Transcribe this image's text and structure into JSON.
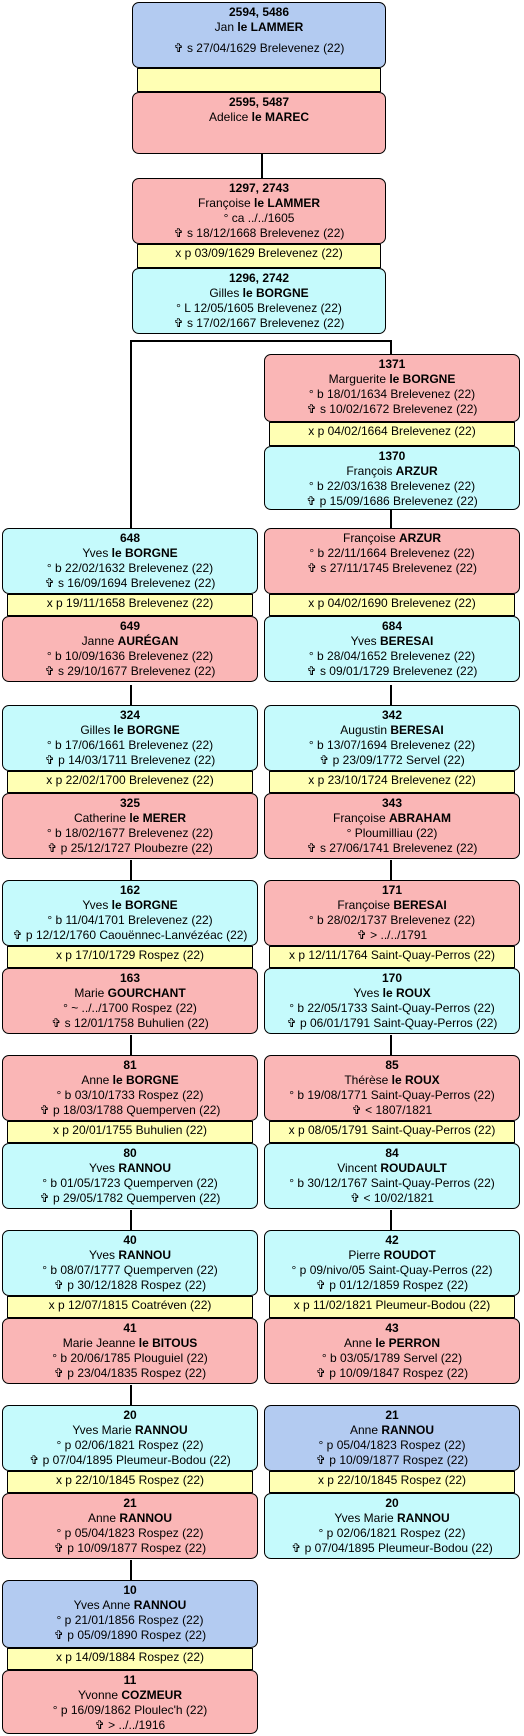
{
  "cards": {
    "c1": {
      "num": "2594, 5486",
      "first": "Jan ",
      "last": "le LAMMER",
      "lines": [
        "✞ s 27/04/1629 Brelevenez (22)"
      ]
    },
    "c2": {
      "num": "2595, 5487",
      "first": "Adelice ",
      "last": "le MAREC",
      "lines": []
    },
    "c3": {
      "num": "1297, 2743",
      "first": "Françoise ",
      "last": "le LAMMER",
      "lines": [
        "° ca ../../1605",
        "✞ s 18/12/1668 Brelevenez (22)"
      ]
    },
    "c4": {
      "num": "1296, 2742",
      "first": "Gilles ",
      "last": "le BORGNE",
      "lines": [
        "° L 12/05/1605 Brelevenez (22)",
        "✞ s 17/02/1667 Brelevenez (22)"
      ]
    },
    "c5": {
      "num": "1371",
      "first": "Marguerite ",
      "last": "le BORGNE",
      "lines": [
        "° b 18/01/1634 Brelevenez (22)",
        "✞ s 10/02/1672 Brelevenez (22)"
      ]
    },
    "c6": {
      "num": "1370",
      "first": "François ",
      "last": "ARZUR",
      "lines": [
        "° b 22/03/1638 Brelevenez (22)",
        "✞ p 15/09/1686 Brelevenez (22)"
      ]
    },
    "c7": {
      "num": "648",
      "first": "Yves ",
      "last": "le BORGNE",
      "lines": [
        "° b 22/02/1632 Brelevenez (22)",
        "✞ s 16/09/1694 Brelevenez (22)"
      ]
    },
    "c8": {
      "num": "649",
      "first": "Janne ",
      "last": "AURÉGAN",
      "lines": [
        "° b 10/09/1636 Brelevenez (22)",
        "✞ s 29/10/1677 Brelevenez (22)"
      ]
    },
    "c9": {
      "num": "",
      "first": "Françoise ",
      "last": "ARZUR",
      "lines": [
        "° b 22/11/1664 Brelevenez (22)",
        "✞ s 27/11/1745 Brelevenez (22)"
      ]
    },
    "c10": {
      "num": "684",
      "first": "Yves ",
      "last": "BERESAI",
      "lines": [
        "° b 28/04/1652 Brelevenez (22)",
        "✞ s 09/01/1729 Brelevenez (22)"
      ]
    },
    "c11": {
      "num": "324",
      "first": "Gilles ",
      "last": "le BORGNE",
      "lines": [
        "° b 17/06/1661 Brelevenez (22)",
        "✞ p 14/03/1711 Brelevenez (22)"
      ]
    },
    "c12": {
      "num": "325",
      "first": "Catherine ",
      "last": "le MERER",
      "lines": [
        "° b 18/02/1677 Brelevenez (22)",
        "✞ p 25/12/1727 Ploubezre (22)"
      ]
    },
    "c13": {
      "num": "342",
      "first": "Augustin ",
      "last": "BERESAI",
      "lines": [
        "° b 13/07/1694 Brelevenez (22)",
        "✞ p 23/09/1772 Servel (22)"
      ]
    },
    "c14": {
      "num": "343",
      "first": "Françoise ",
      "last": "ABRAHAM",
      "lines": [
        "° Ploumilliau (22)",
        "✞ s 27/06/1741 Brelevenez (22)"
      ]
    },
    "c15": {
      "num": "162",
      "first": "Yves ",
      "last": "le BORGNE",
      "lines": [
        "° b 11/04/1701 Brelevenez (22)",
        "✞ p 12/12/1760 Caouënnec-Lanvézéac (22)"
      ]
    },
    "c16": {
      "num": "163",
      "first": "Marie ",
      "last": "GOURCHANT",
      "lines": [
        "° ~ ../../1700 Rospez (22)",
        "✞ s 12/01/1758 Buhulien (22)"
      ]
    },
    "c17": {
      "num": "171",
      "first": "Françoise ",
      "last": "BERESAI",
      "lines": [
        "° b 28/02/1737 Brelevenez (22)",
        "✞ > ../../1791"
      ]
    },
    "c18": {
      "num": "170",
      "first": "Yves ",
      "last": "le ROUX",
      "lines": [
        "° b 22/05/1733 Saint-Quay-Perros (22)",
        "✞ p 06/01/1791 Saint-Quay-Perros (22)"
      ]
    },
    "c19": {
      "num": "81",
      "first": "Anne ",
      "last": "le BORGNE",
      "lines": [
        "° b 03/10/1733 Rospez (22)",
        "✞ p 18/03/1788 Quemperven (22)"
      ]
    },
    "c20": {
      "num": "80",
      "first": "Yves ",
      "last": "RANNOU",
      "lines": [
        "° b 01/05/1723 Quemperven (22)",
        "✞ p 29/05/1782 Quemperven (22)"
      ]
    },
    "c21": {
      "num": "85",
      "first": "Thérèse ",
      "last": "le ROUX",
      "lines": [
        "° b 19/08/1771 Saint-Quay-Perros (22)",
        "✞ <  1807/1821"
      ]
    },
    "c22": {
      "num": "84",
      "first": "Vincent ",
      "last": "ROUDAULT",
      "lines": [
        "° b 30/12/1767 Saint-Quay-Perros (22)",
        "✞ < 10/02/1821"
      ]
    },
    "c23": {
      "num": "40",
      "first": "Yves ",
      "last": "RANNOU",
      "lines": [
        "° b 08/07/1777 Quemperven (22)",
        "✞ p 30/12/1828 Rospez (22)"
      ]
    },
    "c24": {
      "num": "41",
      "first": "Marie Jeanne ",
      "last": "le BITOUS",
      "lines": [
        "° b 20/06/1785 Plouguiel (22)",
        "✞ p 23/04/1835 Rospez (22)"
      ]
    },
    "c25": {
      "num": "42",
      "first": "Pierre ",
      "last": "ROUDOT",
      "lines": [
        "° p 09/nivo/05 Saint-Quay-Perros (22)",
        "✞ p 01/12/1859 Rospez (22)"
      ]
    },
    "c26": {
      "num": "43",
      "first": "Anne ",
      "last": "le PERRON",
      "lines": [
        "° b 03/05/1789 Servel (22)",
        "✞ p 10/09/1847 Rospez (22)"
      ]
    },
    "c27": {
      "num": "20",
      "first": "Yves Marie ",
      "last": "RANNOU",
      "lines": [
        "° p 02/06/1821 Rospez (22)",
        "✞ p 07/04/1895 Pleumeur-Bodou (22)"
      ]
    },
    "c28": {
      "num": "21",
      "first": "Anne ",
      "last": "RANNOU",
      "lines": [
        "° p 05/04/1823 Rospez (22)",
        "✞ p 10/09/1877 Rospez (22)"
      ]
    },
    "c29": {
      "num": "21",
      "first": "Anne ",
      "last": "RANNOU",
      "lines": [
        "° p 05/04/1823 Rospez (22)",
        "✞ p 10/09/1877 Rospez (22)"
      ]
    },
    "c30": {
      "num": "20",
      "first": "Yves Marie ",
      "last": "RANNOU",
      "lines": [
        "° p 02/06/1821 Rospez (22)",
        "✞ p 07/04/1895 Pleumeur-Bodou (22)"
      ]
    },
    "c31": {
      "num": "10",
      "first": "Yves Anne ",
      "last": "RANNOU",
      "lines": [
        "° p 21/01/1856 Rospez (22)",
        "✞ p 05/09/1890 Rospez (22)"
      ]
    },
    "c32": {
      "num": "11",
      "first": "Yvonne ",
      "last": "COZMEUR",
      "lines": [
        "° p 16/09/1862 Ploulec'h (22)",
        "✞ > ../../1916"
      ]
    }
  },
  "marriages": {
    "m2": "x p 03/09/1629 Brelevenez (22)",
    "m3": "x p 04/02/1664 Brelevenez (22)",
    "m4": "x p 19/11/1658 Brelevenez (22)",
    "m5": "x p 04/02/1690 Brelevenez (22)",
    "m6": "x p 22/02/1700 Brelevenez (22)",
    "m7": "x p 23/10/1724 Brelevenez (22)",
    "m8": "x p 17/10/1729 Rospez (22)",
    "m9": "x p 12/11/1764 Saint-Quay-Perros (22)",
    "m10": "x p 20/01/1755 Buhulien (22)",
    "m11": "x p 08/05/1791 Saint-Quay-Perros (22)",
    "m12": "x p 12/07/1815 Coatréven (22)",
    "m13": "x p 11/02/1821 Pleumeur-Bodou (22)",
    "m14": "x p 22/10/1845 Rospez (22)",
    "m15": "x p 22/10/1845 Rospez (22)",
    "m16": "x p 14/09/1884 Rospez (22)"
  },
  "colors": {
    "male": "#c5fafc",
    "female": "#fab6b6",
    "highlight": "#b3cbf1",
    "marriage": "#ffffb4"
  }
}
